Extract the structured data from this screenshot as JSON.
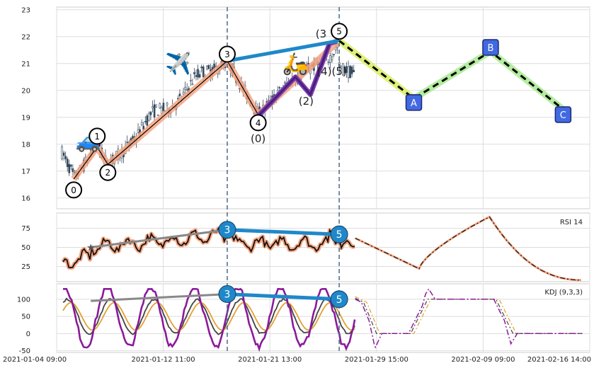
{
  "chart_data": {
    "type": "line",
    "x_ticks": [
      "2021-01-04 09:00",
      "2021-01-12 11:00",
      "2021-01-21 13:00",
      "2021-01-29 15:00",
      "2021-02-09 09:00",
      "2021-02-16 14:00"
    ],
    "panels": [
      {
        "name": "price",
        "y_ticks": [
          16,
          17,
          18,
          19,
          20,
          21,
          22,
          23
        ],
        "ylim": [
          15.6,
          23.1
        ],
        "wave_labels": [
          {
            "text": "0",
            "circled": true,
            "x": 0.8,
            "y": 16.3
          },
          {
            "text": "1",
            "circled": true,
            "x": 1.9,
            "y": 18.3
          },
          {
            "text": "2",
            "circled": true,
            "x": 2.4,
            "y": 16.95
          },
          {
            "text": "3",
            "circled": true,
            "x": 8.0,
            "y": 21.35
          },
          {
            "text": "4",
            "circled": true,
            "x": 9.45,
            "y": 18.8
          },
          {
            "text": "5",
            "circled": true,
            "x": 13.25,
            "y": 22.2
          },
          {
            "text": "(0)",
            "circled": false,
            "x": 9.45,
            "y": 18.2
          },
          {
            "text": "(2)",
            "circled": false,
            "x": 11.7,
            "y": 19.6
          },
          {
            "text": "(4)(5)",
            "circled": false,
            "x": 12.9,
            "y": 20.7
          },
          {
            "text": "(3",
            "circled": false,
            "x": 12.4,
            "y": 22.1
          },
          {
            "text": "A",
            "circled": false,
            "boxed": true,
            "x": 16.75,
            "y": 19.55
          },
          {
            "text": "B",
            "circled": false,
            "boxed": true,
            "x": 20.35,
            "y": 21.6
          },
          {
            "text": "C",
            "circled": false,
            "boxed": true,
            "x": 23.75,
            "y": 19.1
          }
        ],
        "impulse_wave": [
          [
            0.8,
            16.7
          ],
          [
            1.9,
            17.9
          ],
          [
            2.4,
            17.25
          ],
          [
            8.0,
            21.1
          ],
          [
            9.45,
            19.1
          ],
          [
            13.25,
            21.85
          ]
        ],
        "sub_wave": [
          [
            9.45,
            19.05
          ],
          [
            11.2,
            20.5
          ],
          [
            11.9,
            19.85
          ],
          [
            12.8,
            21.75
          ],
          [
            13.25,
            21.85
          ]
        ],
        "corrective_wave": [
          [
            13.25,
            21.85
          ],
          [
            16.75,
            19.7
          ],
          [
            20.35,
            21.45
          ],
          [
            23.75,
            19.3
          ]
        ],
        "divergence_line": [
          [
            8.0,
            21.1
          ],
          [
            13.25,
            21.85
          ]
        ],
        "emojis": [
          {
            "symbol": "🚙",
            "x": 1.5,
            "y": 18.1
          },
          {
            "symbol": "✈️",
            "x": 5.7,
            "y": 20.95
          },
          {
            "symbol": "🛵",
            "x": 11.2,
            "y": 20.95
          }
        ]
      },
      {
        "name": "rsi",
        "legend": "RSI 14",
        "y_ticks": [
          25,
          50,
          75
        ],
        "ylim": [
          5,
          95
        ],
        "divergence": {
          "points": [
            [
              8.0,
              73
            ],
            [
              13.25,
              67
            ]
          ],
          "labels": [
            "3",
            "5"
          ]
        },
        "trend_line": [
          [
            1.6,
            50
          ],
          [
            8.0,
            73
          ]
        ]
      },
      {
        "name": "kdj",
        "legend": "KDJ (9,3,3)",
        "y_ticks": [
          -50,
          0,
          50,
          100
        ],
        "ylim": [
          -55,
          145
        ],
        "divergence": {
          "points": [
            [
              8.0,
              115
            ],
            [
              13.25,
              100
            ]
          ],
          "labels": [
            "3",
            "5"
          ]
        },
        "trend_line": [
          [
            1.6,
            95
          ],
          [
            8.0,
            115
          ]
        ]
      }
    ],
    "vlines_at": [
      8.0,
      13.25
    ],
    "grid": true,
    "colors": {
      "impulse": "#f4a582",
      "sub_wave": "#4b1e7a",
      "corrective": "#b4eda0",
      "corrective_yellow": "#dff07a",
      "divergence": "#1f88c9",
      "trend": "#888888",
      "candle": "#34495e",
      "rsi_glow": "#f4a582",
      "rsi_line": "#111111",
      "kdj_k": "#444444",
      "kdj_d": "#e3a033",
      "kdj_j": "#8b1a9a",
      "box_fill": "#4169e1",
      "vline": "#4a6a8a"
    }
  }
}
